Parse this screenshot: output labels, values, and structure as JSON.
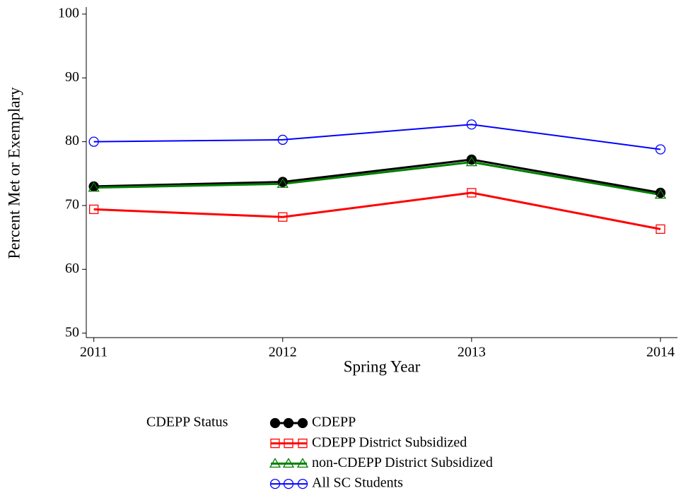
{
  "chart_data": {
    "type": "line",
    "x_label": "Spring Year",
    "y_label": "Percent Met or Exemplary",
    "x": [
      2011,
      2012,
      2013,
      2014
    ],
    "xlim": [
      2010.96,
      2014.09
    ],
    "xticks": [
      2011,
      2012,
      2013,
      2014
    ],
    "ylim": [
      49.3,
      101.1
    ],
    "yticks": [
      50,
      60,
      70,
      80,
      90,
      100
    ],
    "legend_title": "CDEPP Status",
    "series": [
      {
        "name": "CDEPP",
        "color": "#000000",
        "marker": "circle",
        "filled": true,
        "values": [
          73.0,
          73.7,
          77.2,
          72.0
        ]
      },
      {
        "name": "CDEPP District Subsidized",
        "color": "#ff0000",
        "marker": "square",
        "filled": false,
        "values": [
          69.4,
          68.2,
          72.0,
          66.3
        ]
      },
      {
        "name": "non-CDEPP District Subsidized",
        "color": "#008000",
        "marker": "triangle",
        "filled": false,
        "values": [
          72.8,
          73.4,
          76.8,
          71.7
        ]
      },
      {
        "name": "All SC Students",
        "color": "#0000ff",
        "marker": "circle",
        "filled": false,
        "values": [
          80.0,
          80.3,
          82.7,
          78.8
        ]
      }
    ]
  }
}
